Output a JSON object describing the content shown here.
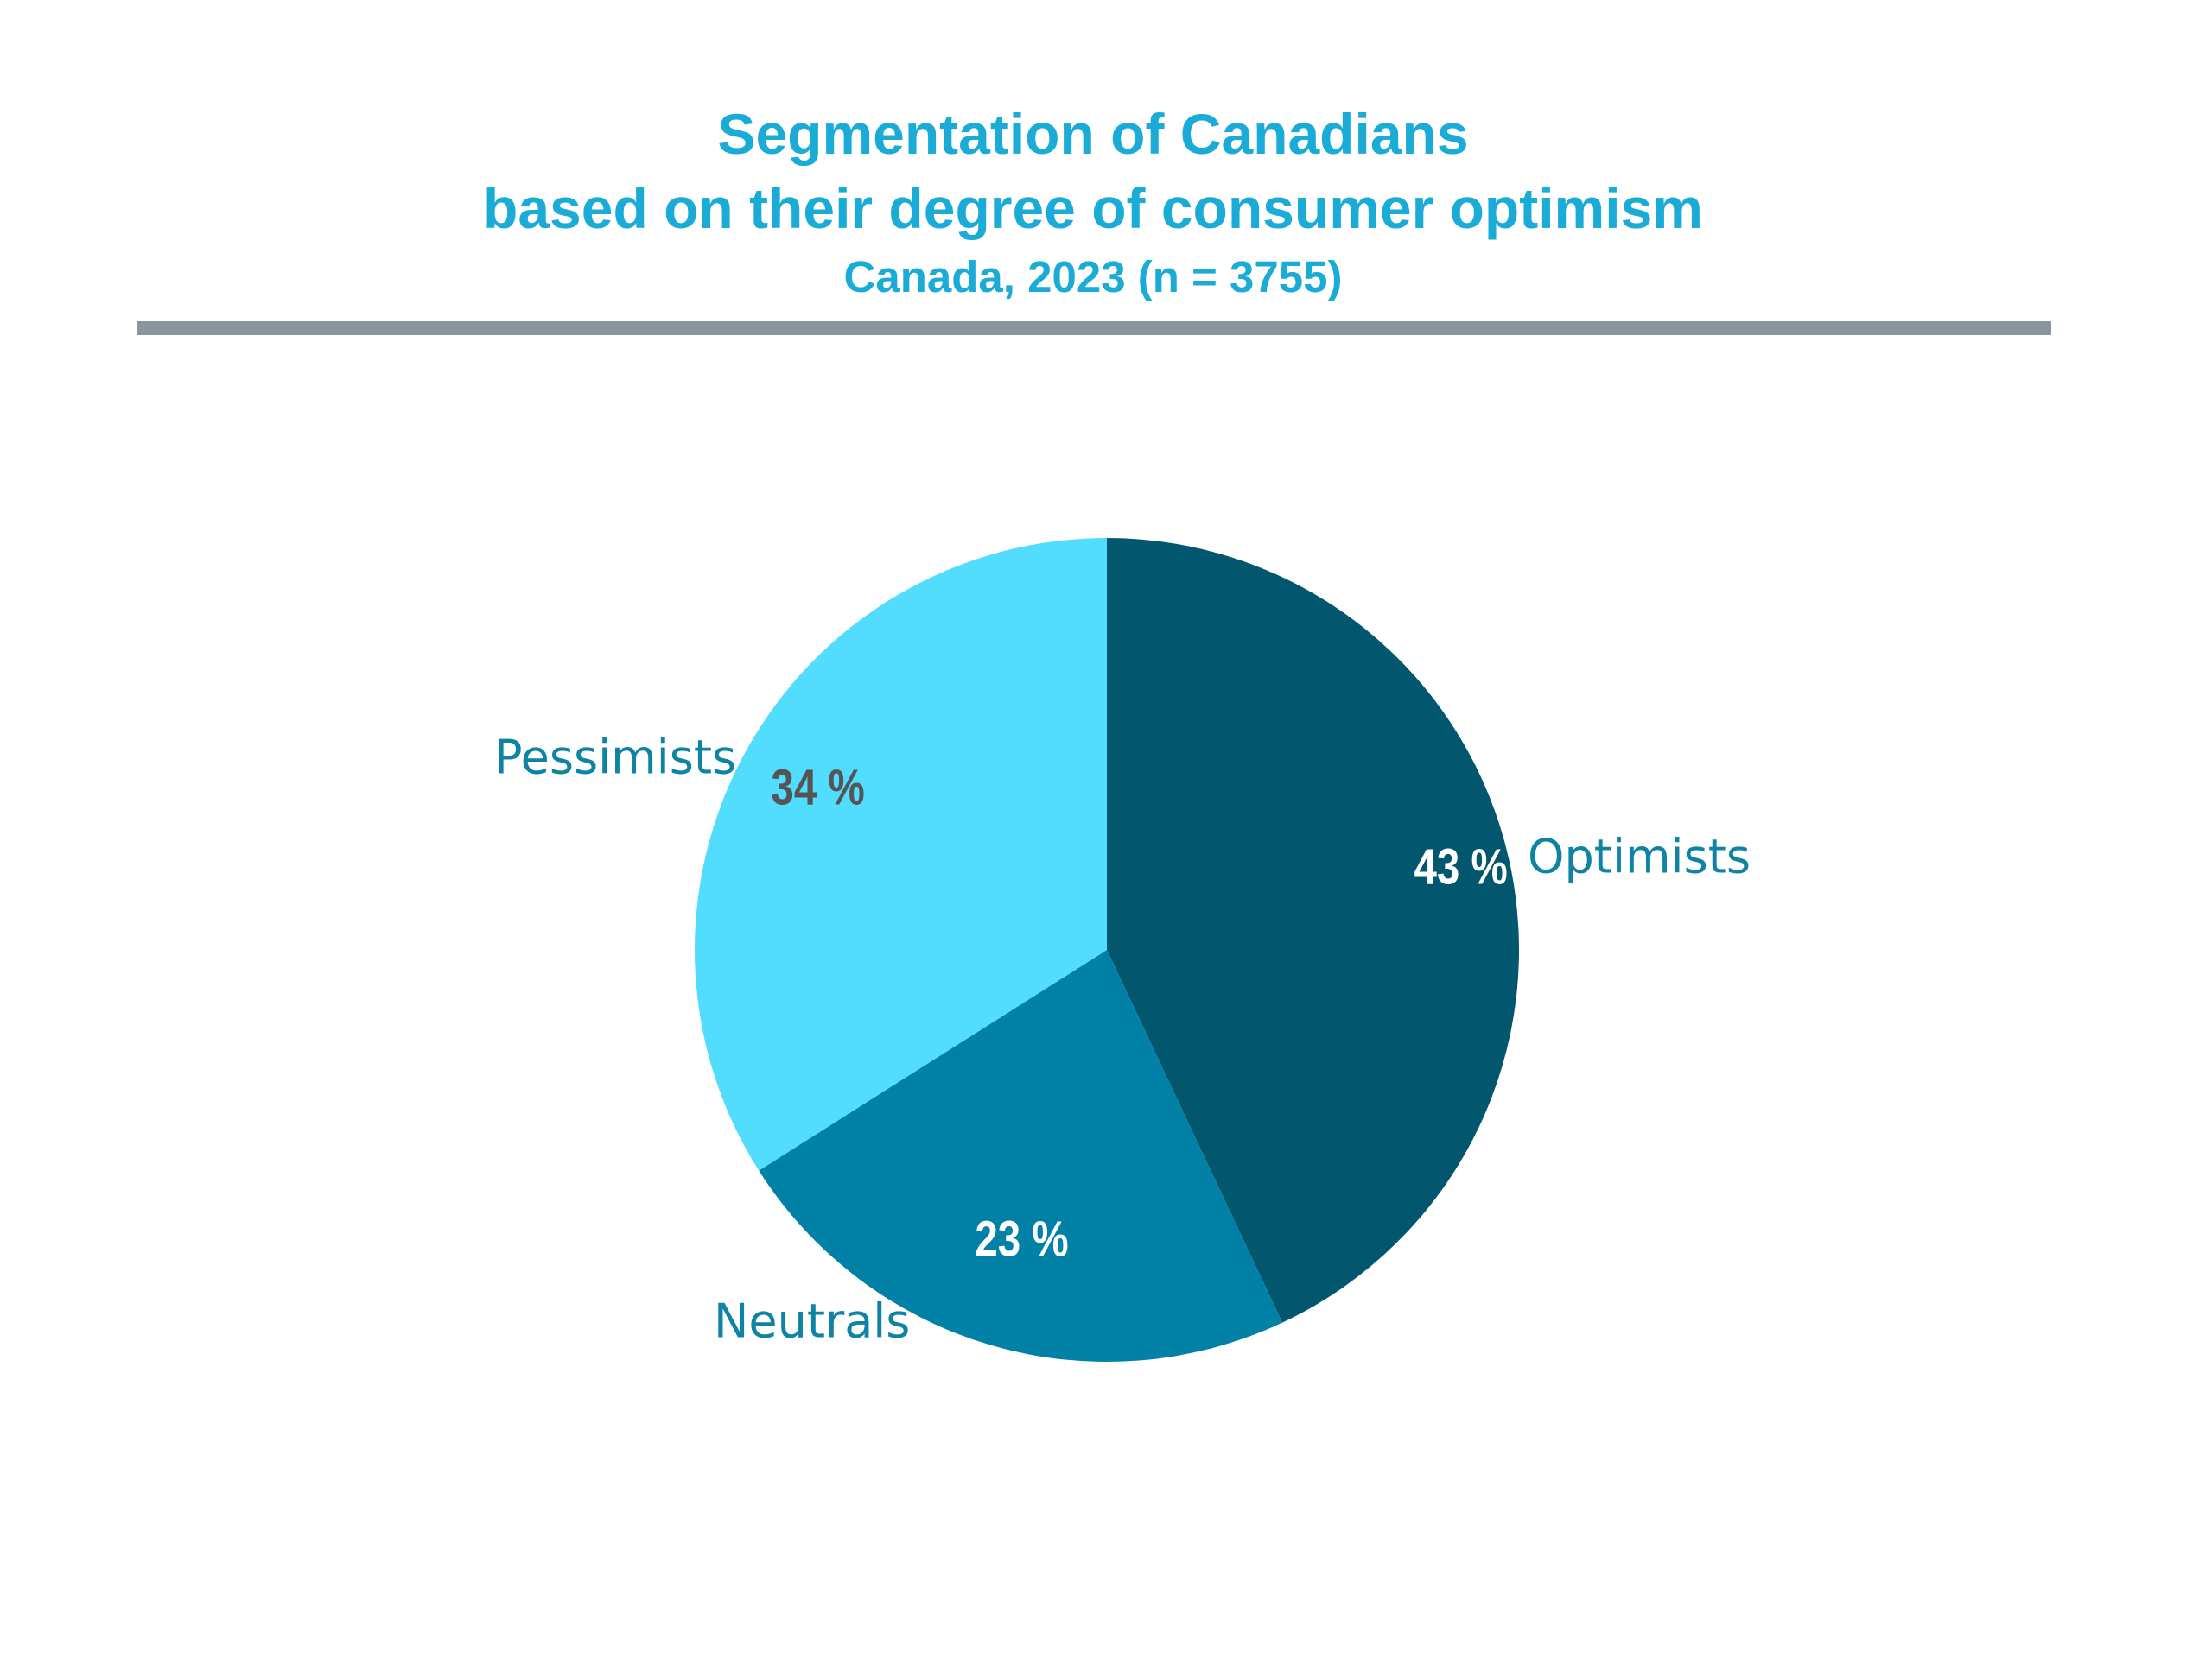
{
  "chart_data": {
    "type": "pie",
    "title": "Segmentation of Canadians",
    "title_line2": "based on their degree of consumer optimism",
    "subtitle": "Canada, 2023 (n = 3755)",
    "categories": [
      "Optimists",
      "Neutrals",
      "Pessimists"
    ],
    "values": [
      43,
      23,
      34
    ],
    "value_labels": [
      "43 %",
      "23 %",
      "34 %"
    ],
    "colors": [
      "#02566d",
      "#0281a6",
      "#52dcfe"
    ],
    "value_label_colors": [
      "#ffffff",
      "#ffffff",
      "#555555"
    ],
    "start_angle_deg": 0,
    "direction": "clockwise",
    "legend": "none"
  },
  "style": {
    "title_color": "#1aabd6",
    "category_label_color": "#0f83a4",
    "rule_color": "#8a959e",
    "background": "#ffffff"
  }
}
